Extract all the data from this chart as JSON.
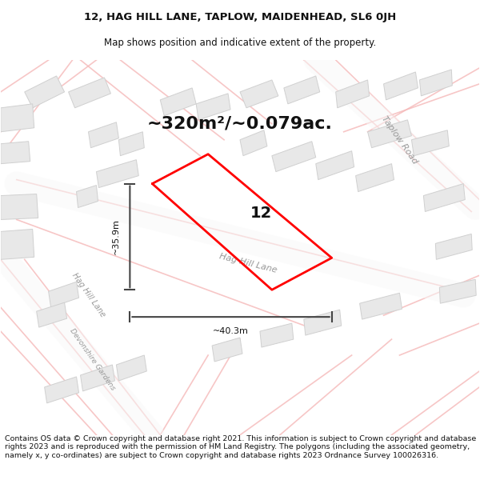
{
  "title_line1": "12, HAG HILL LANE, TAPLOW, MAIDENHEAD, SL6 0JH",
  "title_line2": "Map shows position and indicative extent of the property.",
  "area_text": "~320m²/~0.079ac.",
  "label_12": "12",
  "dim_vertical": "~35.9m",
  "dim_horizontal": "~40.3m",
  "footer_text": "Contains OS data © Crown copyright and database right 2021. This information is subject to Crown copyright and database rights 2023 and is reproduced with the permission of HM Land Registry. The polygons (including the associated geometry, namely x, y co-ordinates) are subject to Crown copyright and database rights 2023 Ordnance Survey 100026316.",
  "bg_color": "#f5f5f5",
  "map_bg": "#f0eeee",
  "plot_outline_color": "#ff0000",
  "dim_line_color": "#444444",
  "street_road_color": "#ffffff",
  "street_label_color": "#888888",
  "building_fill": "#dddddd",
  "building_stroke": "#cccccc",
  "road_line_color": "#ffaaaa",
  "title_fontsize": 9.5,
  "subtitle_fontsize": 8.5,
  "area_fontsize": 16,
  "label_fontsize": 14,
  "footer_fontsize": 6.8,
  "road_label_fontsize": 8
}
